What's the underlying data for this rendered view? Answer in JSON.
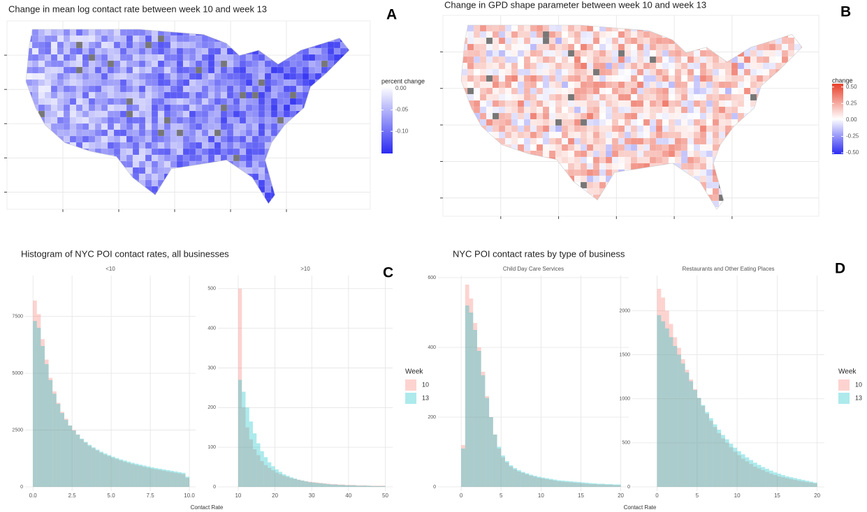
{
  "chart_data": [
    {
      "type": "map",
      "panel": "A",
      "title": "Change in mean log contact rate between week 10 and week 13",
      "legend_title": "percent change",
      "colors": [
        "#2b2bf2",
        "#ffffff"
      ],
      "lim": [
        -0.152,
        0.005
      ],
      "ticks": [
        {
          "value": 0,
          "label": "0.00"
        },
        {
          "value": -0.05,
          "label": "-0.05"
        },
        {
          "value": -0.1,
          "label": "-0.10"
        }
      ]
    },
    {
      "type": "map",
      "panel": "B",
      "title": "Change in GPD shape parameter between week 10 and week 13",
      "legend_title": "change",
      "colors": [
        "#2b2bf2",
        "#ffffff",
        "#e8402a"
      ],
      "lim": [
        -0.52,
        0.55
      ],
      "ticks": [
        {
          "value": 0.5,
          "label": "0.50"
        },
        {
          "value": 0.25,
          "label": "0.25"
        },
        {
          "value": 0,
          "label": "0.00"
        },
        {
          "value": -0.25,
          "label": "-0.25"
        },
        {
          "value": -0.5,
          "label": "-0.50"
        }
      ]
    },
    {
      "type": "histogram",
      "panel": "C",
      "title": "Histogram of NYC POI contact rates, all businesses",
      "x_label": "Contact Rate",
      "legend_title": "Week",
      "legend": [
        {
          "name": "10",
          "color": "#F8766D"
        },
        {
          "name": "13",
          "color": "#00BFC4"
        }
      ],
      "facets": [
        {
          "title": "<10",
          "xlim": [
            -0.5,
            10.4
          ],
          "ylim": [
            0,
            9300
          ],
          "xticks": [
            {
              "value": 0,
              "label": "0.0"
            },
            {
              "value": 2.5,
              "label": "2.5"
            },
            {
              "value": 5,
              "label": "5.0"
            },
            {
              "value": 7.5,
              "label": "7.5"
            },
            {
              "value": 10,
              "label": "10.0"
            }
          ],
          "yticks": [
            0,
            2500,
            5000,
            7500
          ],
          "bins": [
            0,
            0.25,
            0.5,
            0.75,
            1,
            1.25,
            1.5,
            1.75,
            2,
            2.25,
            2.5,
            2.75,
            3,
            3.25,
            3.5,
            3.75,
            4,
            4.25,
            4.5,
            4.75,
            5,
            5.25,
            5.5,
            5.75,
            6,
            6.25,
            6.5,
            6.75,
            7,
            7.25,
            7.5,
            7.75,
            8,
            8.25,
            8.5,
            8.75,
            9,
            9.25,
            9.5,
            9.75,
            10
          ],
          "series": [
            {
              "values": [
                8200,
                7600,
                6500,
                5600,
                4800,
                4200,
                3700,
                3300,
                3000,
                2700,
                2500,
                2300,
                2100,
                1950,
                1800,
                1700,
                1600,
                1500,
                1420,
                1350,
                1280,
                1220,
                1160,
                1100,
                1050,
                1000,
                960,
                920,
                880,
                840,
                800,
                770,
                740,
                710,
                680,
                650,
                620,
                590,
                560,
                400
              ]
            },
            {
              "values": [
                7300,
                7000,
                6200,
                5400,
                4700,
                4100,
                3650,
                3250,
                2950,
                2700,
                2480,
                2300,
                2120,
                1980,
                1850,
                1740,
                1640,
                1550,
                1470,
                1400,
                1330,
                1270,
                1210,
                1160,
                1110,
                1060,
                1020,
                980,
                940,
                900,
                860,
                830,
                800,
                770,
                740,
                710,
                680,
                650,
                620,
                450
              ]
            }
          ]
        },
        {
          "title": ">10",
          "xlim": [
            4.5,
            52
          ],
          "ylim": [
            0,
            533
          ],
          "xticks": [
            10,
            20,
            30,
            40,
            50
          ],
          "yticks": [
            0,
            100,
            200,
            300,
            400,
            500
          ],
          "bins": [
            10,
            11,
            12,
            13,
            14,
            15,
            16,
            17,
            18,
            19,
            20,
            21,
            22,
            23,
            24,
            25,
            26,
            27,
            28,
            29,
            30,
            31,
            32,
            33,
            34,
            35,
            36,
            37,
            38,
            39,
            40,
            41,
            42,
            43,
            44,
            45,
            46,
            47,
            48,
            49,
            50
          ],
          "series": [
            {
              "values": [
                500,
                200,
                150,
                120,
                95,
                80,
                65,
                55,
                48,
                42,
                36,
                32,
                28,
                25,
                22,
                20,
                18,
                16,
                14,
                13,
                12,
                11,
                10,
                9,
                8,
                7,
                7,
                6,
                6,
                5,
                5,
                5,
                4,
                4,
                4,
                3,
                3,
                3,
                3,
                3
              ]
            },
            {
              "values": [
                270,
                240,
                200,
                165,
                135,
                110,
                90,
                75,
                62,
                52,
                44,
                38,
                32,
                28,
                24,
                21,
                18,
                16,
                14,
                12,
                11,
                10,
                9,
                8,
                7,
                6,
                6,
                5,
                5,
                4,
                4,
                4,
                3,
                3,
                3,
                3,
                2,
                2,
                2,
                2
              ]
            }
          ]
        }
      ]
    },
    {
      "type": "histogram",
      "panel": "D",
      "title": "NYC POI contact rates by type of business",
      "x_label": "Contact Rate",
      "legend_title": "Week",
      "legend": [
        {
          "name": "10",
          "color": "#F8766D"
        },
        {
          "name": "13",
          "color": "#00BFC4"
        }
      ],
      "facets": [
        {
          "title": "Child Day Care Services",
          "xlim": [
            -2.9,
            21
          ],
          "ylim": [
            0,
            606
          ],
          "xticks": [
            0,
            5,
            10,
            15,
            20
          ],
          "yticks": [
            0,
            200,
            400,
            600
          ],
          "bins": [
            0,
            0.5,
            1,
            1.5,
            2,
            2.5,
            3,
            3.5,
            4,
            4.5,
            5,
            5.5,
            6,
            6.5,
            7,
            7.5,
            8,
            8.5,
            9,
            9.5,
            10,
            10.5,
            11,
            11.5,
            12,
            12.5,
            13,
            13.5,
            14,
            14.5,
            15,
            15.5,
            16,
            16.5,
            17,
            17.5,
            18,
            18.5,
            19,
            19.5,
            20
          ],
          "series": [
            {
              "values": [
                120,
                580,
                540,
                470,
                400,
                330,
                260,
                200,
                150,
                110,
                85,
                70,
                58,
                50,
                44,
                40,
                36,
                32,
                29,
                26,
                24,
                22,
                20,
                18,
                16,
                15,
                14,
                13,
                12,
                11,
                10,
                9,
                8,
                8,
                7,
                7,
                6,
                6,
                5,
                5
              ]
            },
            {
              "values": [
                110,
                520,
                500,
                450,
                390,
                320,
                255,
                200,
                150,
                115,
                90,
                74,
                62,
                54,
                48,
                43,
                39,
                35,
                32,
                29,
                27,
                25,
                23,
                21,
                19,
                18,
                17,
                16,
                15,
                14,
                13,
                12,
                11,
                10,
                9,
                9,
                8,
                8,
                7,
                7
              ]
            }
          ]
        },
        {
          "title": "Restaurants and Other Eating Places",
          "xlim": [
            -3.1,
            20.9
          ],
          "ylim": [
            0,
            2400
          ],
          "xticks": [
            0,
            5,
            10,
            15,
            20
          ],
          "yticks": [
            0,
            500,
            1000,
            1500,
            2000
          ],
          "bins": [
            0,
            0.5,
            1,
            1.5,
            2,
            2.5,
            3,
            3.5,
            4,
            4.5,
            5,
            5.5,
            6,
            6.5,
            7,
            7.5,
            8,
            8.5,
            9,
            9.5,
            10,
            10.5,
            11,
            11.5,
            12,
            12.5,
            13,
            13.5,
            14,
            14.5,
            15,
            15.5,
            16,
            16.5,
            17,
            17.5,
            18,
            18.5,
            19,
            19.5,
            20
          ],
          "series": [
            {
              "values": [
                2250,
                2150,
                2000,
                1850,
                1700,
                1580,
                1450,
                1330,
                1220,
                1110,
                1010,
                920,
                830,
                750,
                680,
                610,
                550,
                500,
                450,
                400,
                360,
                320,
                290,
                260,
                230,
                210,
                190,
                170,
                150,
                135,
                120,
                110,
                100,
                90,
                80,
                70,
                62,
                55,
                48,
                40
              ]
            },
            {
              "values": [
                1950,
                1880,
                1800,
                1700,
                1600,
                1500,
                1400,
                1300,
                1200,
                1100,
                1010,
                930,
                850,
                780,
                710,
                650,
                590,
                540,
                490,
                445,
                405,
                370,
                335,
                305,
                275,
                250,
                225,
                205,
                185,
                165,
                150,
                135,
                120,
                110,
                100,
                90,
                80,
                70,
                60,
                50
              ]
            }
          ]
        }
      ]
    }
  ]
}
